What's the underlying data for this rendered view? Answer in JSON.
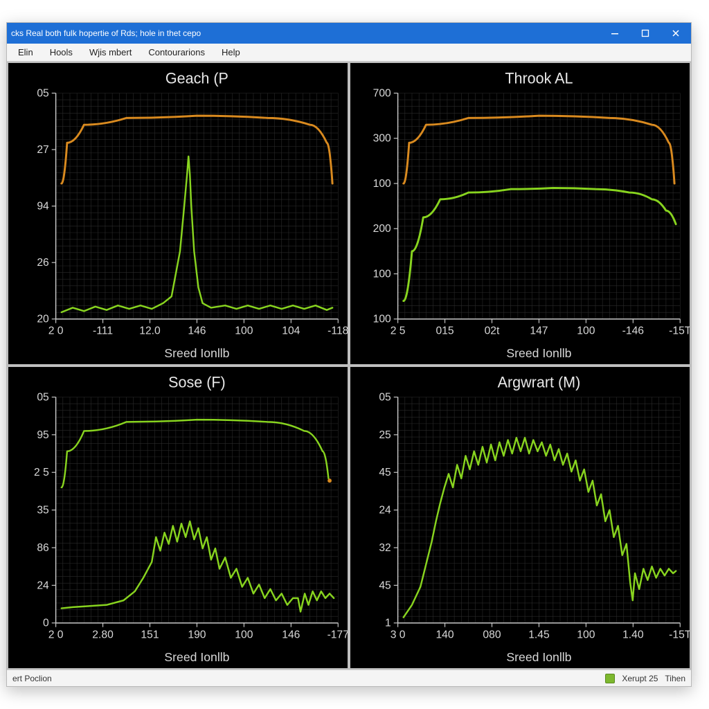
{
  "window": {
    "title": "cks Real both fulk hopertie of Rds; hole in thet cepo",
    "titlebar_bg": "#1e6fd6",
    "titlebar_fg": "#ffffff"
  },
  "menu": {
    "items": [
      "Elin",
      "Hools",
      "Wjis mbert",
      "Contourarions",
      "Help"
    ]
  },
  "status": {
    "left": "ert Poclion",
    "right1": "Xerupt 25",
    "right2": "Tihen"
  },
  "charts": {
    "layout": "2x2",
    "background_color": "#000000",
    "panel_border_color": "#bfbfbf",
    "grid_color": "#2b2b2b",
    "axis_color": "#c8c8c8",
    "axis_text_color": "#d8d8d8",
    "title_color": "#e8e8e8",
    "title_fontsize": 22,
    "axis_label_fontsize": 18,
    "tick_fontsize": 16,
    "xlabel": "Sreed Ionllb",
    "panels": [
      {
        "id": "top_left",
        "title": "Geach (P",
        "y_ticks": [
          "05",
          "27",
          "94",
          "26",
          "20"
        ],
        "x_ticks": [
          "2 0",
          "-111",
          "12.0",
          "146",
          "100",
          "104",
          "-118"
        ],
        "series": [
          {
            "color": "#d98a1f",
            "width": 3,
            "type": "curve",
            "points": [
              [
                0.02,
                0.4
              ],
              [
                0.04,
                0.22
              ],
              [
                0.1,
                0.14
              ],
              [
                0.25,
                0.11
              ],
              [
                0.5,
                0.1
              ],
              [
                0.75,
                0.11
              ],
              [
                0.9,
                0.14
              ],
              [
                0.96,
                0.22
              ],
              [
                0.98,
                0.4
              ]
            ]
          },
          {
            "color": "#88d41f",
            "width": 2.5,
            "type": "line",
            "points": [
              [
                0.02,
                0.97
              ],
              [
                0.06,
                0.95
              ],
              [
                0.1,
                0.965
              ],
              [
                0.14,
                0.945
              ],
              [
                0.18,
                0.96
              ],
              [
                0.22,
                0.94
              ],
              [
                0.26,
                0.955
              ],
              [
                0.3,
                0.94
              ],
              [
                0.34,
                0.955
              ],
              [
                0.38,
                0.93
              ],
              [
                0.41,
                0.9
              ],
              [
                0.44,
                0.7
              ],
              [
                0.455,
                0.5
              ],
              [
                0.465,
                0.36
              ],
              [
                0.47,
                0.28
              ],
              [
                0.475,
                0.36
              ],
              [
                0.48,
                0.5
              ],
              [
                0.49,
                0.7
              ],
              [
                0.505,
                0.86
              ],
              [
                0.52,
                0.93
              ],
              [
                0.55,
                0.95
              ],
              [
                0.6,
                0.94
              ],
              [
                0.64,
                0.955
              ],
              [
                0.68,
                0.94
              ],
              [
                0.72,
                0.955
              ],
              [
                0.76,
                0.94
              ],
              [
                0.8,
                0.955
              ],
              [
                0.84,
                0.94
              ],
              [
                0.88,
                0.955
              ],
              [
                0.92,
                0.94
              ],
              [
                0.96,
                0.96
              ],
              [
                0.98,
                0.95
              ]
            ]
          }
        ]
      },
      {
        "id": "top_right",
        "title": "Throok AL",
        "y_ticks": [
          "700",
          "300",
          "100",
          "200",
          "100",
          "100"
        ],
        "x_ticks": [
          "2 5",
          "015",
          "02t",
          "147",
          "100",
          "-146",
          "-15T"
        ],
        "series": [
          {
            "color": "#d98a1f",
            "width": 3,
            "type": "curve",
            "points": [
              [
                0.02,
                0.4
              ],
              [
                0.04,
                0.22
              ],
              [
                0.1,
                0.14
              ],
              [
                0.25,
                0.11
              ],
              [
                0.5,
                0.1
              ],
              [
                0.75,
                0.11
              ],
              [
                0.9,
                0.14
              ],
              [
                0.96,
                0.22
              ],
              [
                0.98,
                0.4
              ]
            ]
          },
          {
            "color": "#88d41f",
            "width": 3,
            "type": "curve",
            "points": [
              [
                0.02,
                0.92
              ],
              [
                0.05,
                0.7
              ],
              [
                0.09,
                0.55
              ],
              [
                0.15,
                0.47
              ],
              [
                0.25,
                0.44
              ],
              [
                0.4,
                0.425
              ],
              [
                0.55,
                0.42
              ],
              [
                0.7,
                0.425
              ],
              [
                0.82,
                0.44
              ],
              [
                0.9,
                0.47
              ],
              [
                0.95,
                0.52
              ],
              [
                0.985,
                0.58
              ]
            ]
          }
        ]
      },
      {
        "id": "bottom_left",
        "title": "Sose (F)",
        "y_ticks": [
          "05",
          "95",
          "2 5",
          "35",
          "86",
          "24",
          "0"
        ],
        "x_ticks": [
          "2 0",
          "2.80",
          "151",
          "190",
          "100",
          "146",
          "-177"
        ],
        "series": [
          {
            "color": "#88d41f",
            "width": 2.5,
            "type": "curve",
            "points": [
              [
                0.02,
                0.4
              ],
              [
                0.04,
                0.24
              ],
              [
                0.1,
                0.15
              ],
              [
                0.25,
                0.11
              ],
              [
                0.5,
                0.1
              ],
              [
                0.75,
                0.11
              ],
              [
                0.88,
                0.15
              ],
              [
                0.945,
                0.24
              ],
              [
                0.966,
                0.36
              ]
            ]
          },
          {
            "color": "#d98a1f",
            "width": 2,
            "type": "dot",
            "points": [
              [
                0.97,
                0.37
              ]
            ]
          },
          {
            "color": "#88d41f",
            "width": 2.5,
            "type": "line",
            "points": [
              [
                0.02,
                0.935
              ],
              [
                0.06,
                0.93
              ],
              [
                0.12,
                0.925
              ],
              [
                0.18,
                0.92
              ],
              [
                0.24,
                0.9
              ],
              [
                0.28,
                0.86
              ],
              [
                0.31,
                0.8
              ],
              [
                0.34,
                0.73
              ],
              [
                0.355,
                0.62
              ],
              [
                0.37,
                0.68
              ],
              [
                0.385,
                0.6
              ],
              [
                0.4,
                0.65
              ],
              [
                0.415,
                0.57
              ],
              [
                0.43,
                0.64
              ],
              [
                0.445,
                0.56
              ],
              [
                0.46,
                0.62
              ],
              [
                0.475,
                0.55
              ],
              [
                0.49,
                0.63
              ],
              [
                0.505,
                0.58
              ],
              [
                0.52,
                0.67
              ],
              [
                0.535,
                0.62
              ],
              [
                0.55,
                0.72
              ],
              [
                0.565,
                0.67
              ],
              [
                0.58,
                0.76
              ],
              [
                0.6,
                0.71
              ],
              [
                0.62,
                0.8
              ],
              [
                0.64,
                0.76
              ],
              [
                0.66,
                0.84
              ],
              [
                0.68,
                0.8
              ],
              [
                0.7,
                0.87
              ],
              [
                0.72,
                0.83
              ],
              [
                0.74,
                0.89
              ],
              [
                0.76,
                0.85
              ],
              [
                0.78,
                0.9
              ],
              [
                0.8,
                0.87
              ],
              [
                0.82,
                0.92
              ],
              [
                0.84,
                0.89
              ],
              [
                0.858,
                0.89
              ],
              [
                0.867,
                0.95
              ],
              [
                0.882,
                0.87
              ],
              [
                0.895,
                0.92
              ],
              [
                0.91,
                0.86
              ],
              [
                0.925,
                0.9
              ],
              [
                0.94,
                0.86
              ],
              [
                0.955,
                0.89
              ],
              [
                0.97,
                0.87
              ],
              [
                0.985,
                0.89
              ]
            ]
          }
        ]
      },
      {
        "id": "bottom_right",
        "title": "Argwrart (M)",
        "y_ticks": [
          "05",
          "25",
          "45",
          "24",
          "32",
          "45",
          "1"
        ],
        "x_ticks": [
          "3 0",
          "140",
          "080",
          "1.45",
          "100",
          "1.40",
          "-15T"
        ],
        "series": [
          {
            "color": "#88d41f",
            "width": 2.5,
            "type": "line",
            "points": [
              [
                0.02,
                0.975
              ],
              [
                0.05,
                0.92
              ],
              [
                0.08,
                0.84
              ],
              [
                0.1,
                0.74
              ],
              [
                0.12,
                0.64
              ],
              [
                0.135,
                0.55
              ],
              [
                0.15,
                0.47
              ],
              [
                0.165,
                0.4
              ],
              [
                0.18,
                0.34
              ],
              [
                0.195,
                0.4
              ],
              [
                0.21,
                0.3
              ],
              [
                0.225,
                0.36
              ],
              [
                0.24,
                0.26
              ],
              [
                0.255,
                0.32
              ],
              [
                0.27,
                0.24
              ],
              [
                0.285,
                0.3
              ],
              [
                0.3,
                0.22
              ],
              [
                0.315,
                0.29
              ],
              [
                0.33,
                0.21
              ],
              [
                0.345,
                0.28
              ],
              [
                0.36,
                0.2
              ],
              [
                0.375,
                0.26
              ],
              [
                0.39,
                0.19
              ],
              [
                0.405,
                0.25
              ],
              [
                0.42,
                0.18
              ],
              [
                0.435,
                0.24
              ],
              [
                0.45,
                0.18
              ],
              [
                0.465,
                0.25
              ],
              [
                0.48,
                0.19
              ],
              [
                0.495,
                0.24
              ],
              [
                0.51,
                0.2
              ],
              [
                0.525,
                0.26
              ],
              [
                0.54,
                0.21
              ],
              [
                0.555,
                0.28
              ],
              [
                0.57,
                0.23
              ],
              [
                0.585,
                0.3
              ],
              [
                0.6,
                0.25
              ],
              [
                0.615,
                0.33
              ],
              [
                0.63,
                0.28
              ],
              [
                0.645,
                0.37
              ],
              [
                0.66,
                0.32
              ],
              [
                0.675,
                0.42
              ],
              [
                0.69,
                0.37
              ],
              [
                0.705,
                0.48
              ],
              [
                0.72,
                0.43
              ],
              [
                0.735,
                0.55
              ],
              [
                0.75,
                0.5
              ],
              [
                0.765,
                0.62
              ],
              [
                0.78,
                0.57
              ],
              [
                0.795,
                0.7
              ],
              [
                0.81,
                0.65
              ],
              [
                0.823,
                0.82
              ],
              [
                0.832,
                0.9
              ],
              [
                0.84,
                0.78
              ],
              [
                0.855,
                0.85
              ],
              [
                0.87,
                0.76
              ],
              [
                0.885,
                0.81
              ],
              [
                0.9,
                0.75
              ],
              [
                0.915,
                0.8
              ],
              [
                0.93,
                0.76
              ],
              [
                0.945,
                0.79
              ],
              [
                0.96,
                0.76
              ],
              [
                0.975,
                0.78
              ],
              [
                0.985,
                0.77
              ]
            ]
          }
        ]
      }
    ]
  }
}
